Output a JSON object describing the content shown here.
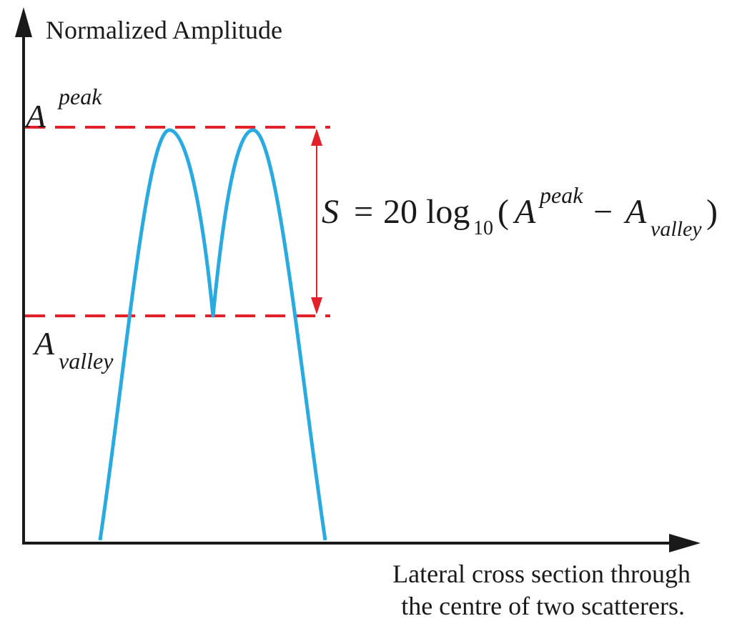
{
  "y_axis_label": "Normalized Amplitude",
  "x_axis_label_line1": "Lateral cross section through",
  "x_axis_label_line2": "the centre of two scatterers.",
  "peak_label": {
    "base": "A",
    "sup": "peak"
  },
  "valley_label": {
    "base": "A",
    "sub": "valley"
  },
  "formula": {
    "lhs": "S",
    "equals": "=",
    "coef": "20",
    "func": "log",
    "func_sub": "10",
    "open": "(",
    "a1": "A",
    "a1_sup": "peak",
    "minus": "−",
    "a2": "A",
    "a2_sub": "valley",
    "close": ")"
  },
  "colors": {
    "axis": "#1a1a1a",
    "curve": "#29aae1",
    "reference": "#e3212b",
    "text": "#1a1a1a"
  }
}
